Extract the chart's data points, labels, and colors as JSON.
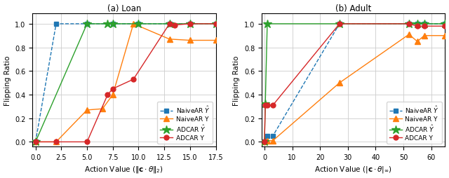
{
  "loan": {
    "naiveAR_Yhat": {
      "x": [
        0.0,
        2.0,
        5.0,
        7.5,
        10.0,
        13.0,
        15.0,
        17.5
      ],
      "y": [
        0.0,
        1.0,
        1.0,
        1.0,
        1.0,
        1.0,
        1.0,
        1.0
      ],
      "color": "#1f77b4",
      "marker": "s",
      "linestyle": "--",
      "label": "NaiveAR $\\hat{Y}$"
    },
    "naiveAR_Y": {
      "x": [
        0.0,
        2.0,
        5.0,
        6.5,
        7.5,
        9.5,
        13.0,
        15.0,
        17.5
      ],
      "y": [
        0.0,
        0.0,
        0.27,
        0.28,
        0.4,
        1.0,
        0.87,
        0.86,
        0.86
      ],
      "color": "#ff7f0e",
      "marker": "^",
      "linestyle": "-",
      "label": "NaiveAR Y"
    },
    "ADCAR_Yhat": {
      "x": [
        0.0,
        5.0,
        7.0,
        7.5,
        10.0,
        13.0,
        15.0,
        17.5
      ],
      "y": [
        0.0,
        1.0,
        1.0,
        1.0,
        1.0,
        1.0,
        1.0,
        1.0
      ],
      "color": "#2ca02c",
      "marker": "*",
      "linestyle": "-",
      "label": "ADCAR $\\hat{Y}$"
    },
    "ADCAR_Y": {
      "x": [
        0.0,
        2.0,
        5.0,
        7.0,
        7.5,
        9.5,
        13.0,
        13.5,
        15.0,
        17.5
      ],
      "y": [
        0.0,
        0.0,
        0.0,
        0.4,
        0.45,
        0.53,
        1.0,
        0.99,
        1.0,
        1.0
      ],
      "color": "#d62728",
      "marker": "o",
      "linestyle": "-",
      "label": "ADCAR Y"
    },
    "xlabel": "Action Value ($\\|\\mathbf{c} \\cdot \\theta\\|_2$)",
    "ylabel": "Flipping Ratio",
    "title": "(a) Loan",
    "xlim": [
      -0.3,
      17.5
    ],
    "ylim": [
      -0.04,
      1.09
    ],
    "xticks": [
      0.0,
      2.5,
      5.0,
      7.5,
      10.0,
      12.5,
      15.0,
      17.5
    ],
    "yticks": [
      0.0,
      0.2,
      0.4,
      0.6,
      0.8,
      1.0
    ]
  },
  "adult": {
    "naiveAR_Yhat": {
      "x": [
        0.0,
        1.0,
        3.0,
        27.0,
        52.0,
        55.0,
        57.5,
        65.0
      ],
      "y": [
        0.0,
        0.05,
        0.05,
        1.0,
        1.0,
        1.0,
        1.0,
        1.0
      ],
      "color": "#1f77b4",
      "marker": "s",
      "linestyle": "--",
      "label": "NaiveAR $\\hat{Y}$"
    },
    "naiveAR_Y": {
      "x": [
        0.0,
        1.0,
        3.0,
        27.0,
        52.0,
        55.0,
        57.5,
        65.0
      ],
      "y": [
        0.0,
        0.01,
        0.01,
        0.5,
        0.91,
        0.85,
        0.9,
        0.9
      ],
      "color": "#ff7f0e",
      "marker": "^",
      "linestyle": "-",
      "label": "NaiveAR Y"
    },
    "ADCAR_Yhat": {
      "x": [
        0.0,
        0.3,
        1.0,
        27.0,
        52.0,
        55.0,
        57.5,
        65.0
      ],
      "y": [
        0.0,
        0.32,
        1.0,
        1.0,
        1.0,
        1.0,
        1.0,
        1.0
      ],
      "color": "#2ca02c",
      "marker": "*",
      "linestyle": "-",
      "label": "ADCAR $\\hat{Y}$"
    },
    "ADCAR_Y": {
      "x": [
        0.0,
        0.3,
        1.0,
        3.0,
        27.0,
        52.0,
        55.0,
        57.5,
        65.0
      ],
      "y": [
        0.0,
        0.31,
        0.31,
        0.31,
        1.0,
        1.0,
        0.98,
        0.98,
        0.98
      ],
      "color": "#d62728",
      "marker": "o",
      "linestyle": "-",
      "label": "ADCAR Y"
    },
    "xlabel": "Action Value ($| \\mathbf{c} \\cdot \\theta| _{\\infty}$)",
    "ylabel": "Flipping Ratio",
    "title": "(b) Adult",
    "xlim": [
      -1.0,
      65.0
    ],
    "ylim": [
      -0.04,
      1.09
    ],
    "xticks": [
      0.0,
      10.0,
      20.0,
      30.0,
      40.0,
      50.0,
      60.0
    ],
    "yticks": [
      0.0,
      0.2,
      0.4,
      0.6,
      0.8,
      1.0
    ]
  },
  "background_color": "white",
  "grid_color": "#cccccc",
  "series_keys": [
    "naiveAR_Yhat",
    "naiveAR_Y",
    "ADCAR_Yhat",
    "ADCAR_Y"
  ]
}
